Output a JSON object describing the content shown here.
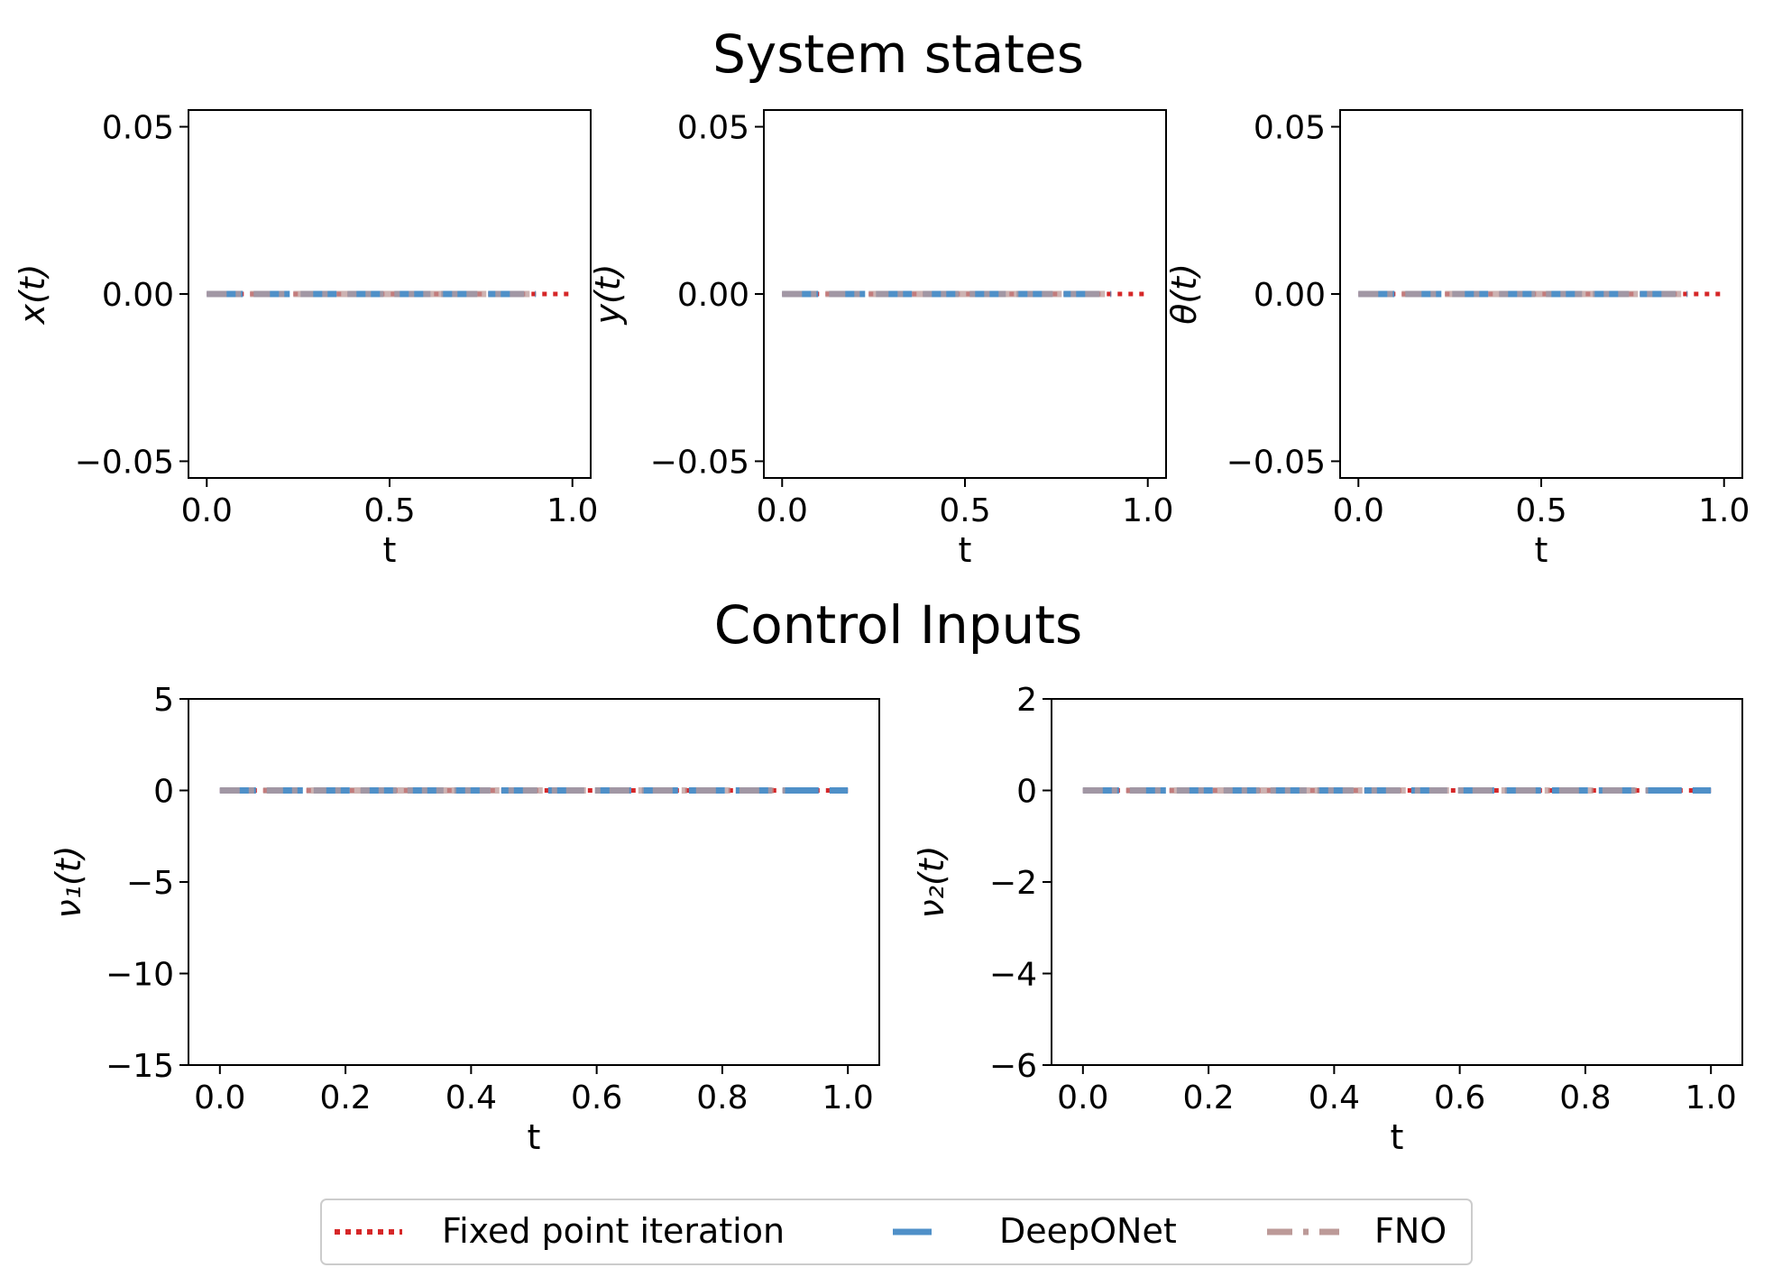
{
  "figure": {
    "top_title": "System states",
    "bottom_title": "Control Inputs"
  },
  "legend": {
    "items": [
      {
        "label": "Fixed point iteration",
        "color": "#d62728",
        "style": "dotted"
      },
      {
        "label": "DeepONet",
        "color": "#4f90c8",
        "style": "solid"
      },
      {
        "label": "FNO",
        "color": "#bc9a98",
        "style": "dashdot"
      }
    ]
  },
  "chart_data": [
    {
      "type": "line",
      "xlabel": "t",
      "ylabel": "x(t)",
      "xlim": [
        -0.05,
        1.05
      ],
      "ylim": [
        -0.055,
        0.055
      ],
      "xticks": [
        0.0,
        0.5,
        1.0
      ],
      "xtick_labels": [
        "0.0",
        "0.5",
        "1.0"
      ],
      "yticks": [
        -0.05,
        0.0,
        0.05
      ],
      "ytick_labels": [
        "−0.05",
        "0.00",
        "0.05"
      ],
      "series": [
        {
          "name": "Fixed point iteration",
          "x": [
            0.0,
            1.0
          ],
          "y": [
            0.0,
            0.0
          ]
        },
        {
          "name": "DeepONet",
          "x": [
            0.0,
            0.9
          ],
          "y": [
            0.0,
            0.0
          ]
        },
        {
          "name": "FNO",
          "x": [
            0.0,
            0.9
          ],
          "y": [
            0.0,
            0.0
          ]
        }
      ]
    },
    {
      "type": "line",
      "xlabel": "t",
      "ylabel": "y(t)",
      "xlim": [
        -0.05,
        1.05
      ],
      "ylim": [
        -0.055,
        0.055
      ],
      "xticks": [
        0.0,
        0.5,
        1.0
      ],
      "xtick_labels": [
        "0.0",
        "0.5",
        "1.0"
      ],
      "yticks": [
        -0.05,
        0.0,
        0.05
      ],
      "ytick_labels": [
        "−0.05",
        "0.00",
        "0.05"
      ],
      "series": [
        {
          "name": "Fixed point iteration",
          "x": [
            0.0,
            1.0
          ],
          "y": [
            0.0,
            0.0
          ]
        },
        {
          "name": "DeepONet",
          "x": [
            0.0,
            0.9
          ],
          "y": [
            0.0,
            0.0
          ]
        },
        {
          "name": "FNO",
          "x": [
            0.0,
            0.9
          ],
          "y": [
            0.0,
            0.0
          ]
        }
      ]
    },
    {
      "type": "line",
      "xlabel": "t",
      "ylabel": "θ(t)",
      "xlim": [
        -0.05,
        1.05
      ],
      "ylim": [
        -0.055,
        0.055
      ],
      "xticks": [
        0.0,
        0.5,
        1.0
      ],
      "xtick_labels": [
        "0.0",
        "0.5",
        "1.0"
      ],
      "yticks": [
        -0.05,
        0.0,
        0.05
      ],
      "ytick_labels": [
        "−0.05",
        "0.00",
        "0.05"
      ],
      "series": [
        {
          "name": "Fixed point iteration",
          "x": [
            0.0,
            1.0
          ],
          "y": [
            0.0,
            0.0
          ]
        },
        {
          "name": "DeepONet",
          "x": [
            0.0,
            0.9
          ],
          "y": [
            0.0,
            0.0
          ]
        },
        {
          "name": "FNO",
          "x": [
            0.0,
            0.9
          ],
          "y": [
            0.0,
            0.0
          ]
        }
      ]
    },
    {
      "type": "line",
      "xlabel": "t",
      "ylabel": "ν₁(t)",
      "xlim": [
        -0.05,
        1.05
      ],
      "ylim": [
        -15,
        5
      ],
      "xticks": [
        0.0,
        0.2,
        0.4,
        0.6,
        0.8,
        1.0
      ],
      "xtick_labels": [
        "0.0",
        "0.2",
        "0.4",
        "0.6",
        "0.8",
        "1.0"
      ],
      "yticks": [
        -15,
        -10,
        -5,
        0,
        5
      ],
      "ytick_labels": [
        "−15",
        "−10",
        "−5",
        "0",
        "5"
      ],
      "series": [
        {
          "name": "Fixed point iteration",
          "x": [
            0.0,
            1.0
          ],
          "y": [
            0.0,
            0.0
          ]
        },
        {
          "name": "DeepONet",
          "x": [
            0.0,
            1.0
          ],
          "y": [
            0.0,
            0.0
          ]
        },
        {
          "name": "FNO",
          "x": [
            0.0,
            0.9
          ],
          "y": [
            0.0,
            0.0
          ]
        }
      ]
    },
    {
      "type": "line",
      "xlabel": "t",
      "ylabel": "ν₂(t)",
      "xlim": [
        -0.05,
        1.05
      ],
      "ylim": [
        -6,
        2
      ],
      "xticks": [
        0.0,
        0.2,
        0.4,
        0.6,
        0.8,
        1.0
      ],
      "xtick_labels": [
        "0.0",
        "0.2",
        "0.4",
        "0.6",
        "0.8",
        "1.0"
      ],
      "yticks": [
        -6,
        -4,
        -2,
        0,
        2
      ],
      "ytick_labels": [
        "−6",
        "−4",
        "−2",
        "0",
        "2"
      ],
      "series": [
        {
          "name": "Fixed point iteration",
          "x": [
            0.0,
            1.0
          ],
          "y": [
            0.0,
            0.0
          ]
        },
        {
          "name": "DeepONet",
          "x": [
            0.0,
            1.0
          ],
          "y": [
            0.0,
            0.0
          ]
        },
        {
          "name": "FNO",
          "x": [
            0.0,
            0.9
          ],
          "y": [
            0.0,
            0.0
          ]
        }
      ]
    }
  ]
}
